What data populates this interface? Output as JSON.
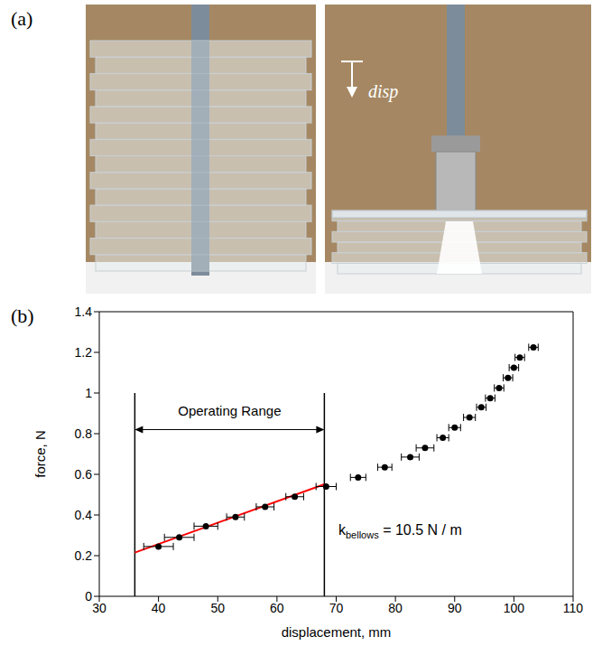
{
  "chart_data": {
    "type": "scatter",
    "panel_labels": [
      "(a)",
      "(b)"
    ],
    "photo_annotation": "disp",
    "x_label": "displacement, mm",
    "y_label": "force, N",
    "xlim": [
      30,
      110
    ],
    "xticks": [
      30,
      40,
      50,
      60,
      70,
      80,
      90,
      100,
      110
    ],
    "ylim": [
      0,
      1.4
    ],
    "yticks": [
      0,
      0.2,
      0.4,
      0.6,
      0.8,
      1,
      1.2,
      1.4
    ],
    "grid": false,
    "series": [
      {
        "type": "scatter",
        "color": "#000000",
        "marker": "circle",
        "x": [
          40,
          43.5,
          48,
          53,
          58,
          63,
          68.3,
          73.7,
          78.2,
          82.5,
          85,
          88,
          90,
          92.5,
          94.5,
          96,
          97.5,
          99,
          100,
          101,
          103.3
        ],
        "values": [
          0.245,
          0.29,
          0.345,
          0.39,
          0.44,
          0.49,
          0.54,
          0.585,
          0.635,
          0.685,
          0.73,
          0.78,
          0.83,
          0.88,
          0.93,
          0.975,
          1.025,
          1.075,
          1.125,
          1.175,
          1.225
        ],
        "x_error": [
          2.5,
          2.5,
          2,
          1.5,
          1.5,
          1.5,
          1.7,
          1.3,
          1.2,
          1.5,
          1.5,
          1,
          1,
          1,
          0.8,
          0.8,
          0.8,
          0.8,
          0.8,
          0.8,
          0.8
        ]
      },
      {
        "type": "line",
        "color": "#ff0000",
        "line_style": "solid",
        "x": [
          36,
          68
        ],
        "values": [
          0.215,
          0.551
        ]
      }
    ],
    "operating_range": {
      "label": "Operating Range",
      "x": [
        36,
        68
      ],
      "y_top": 1.0,
      "arrow_y": 0.82
    },
    "spring_constant": {
      "symbol": "k",
      "subscript": "bellows",
      "text": " = 10.5 N / m"
    }
  }
}
